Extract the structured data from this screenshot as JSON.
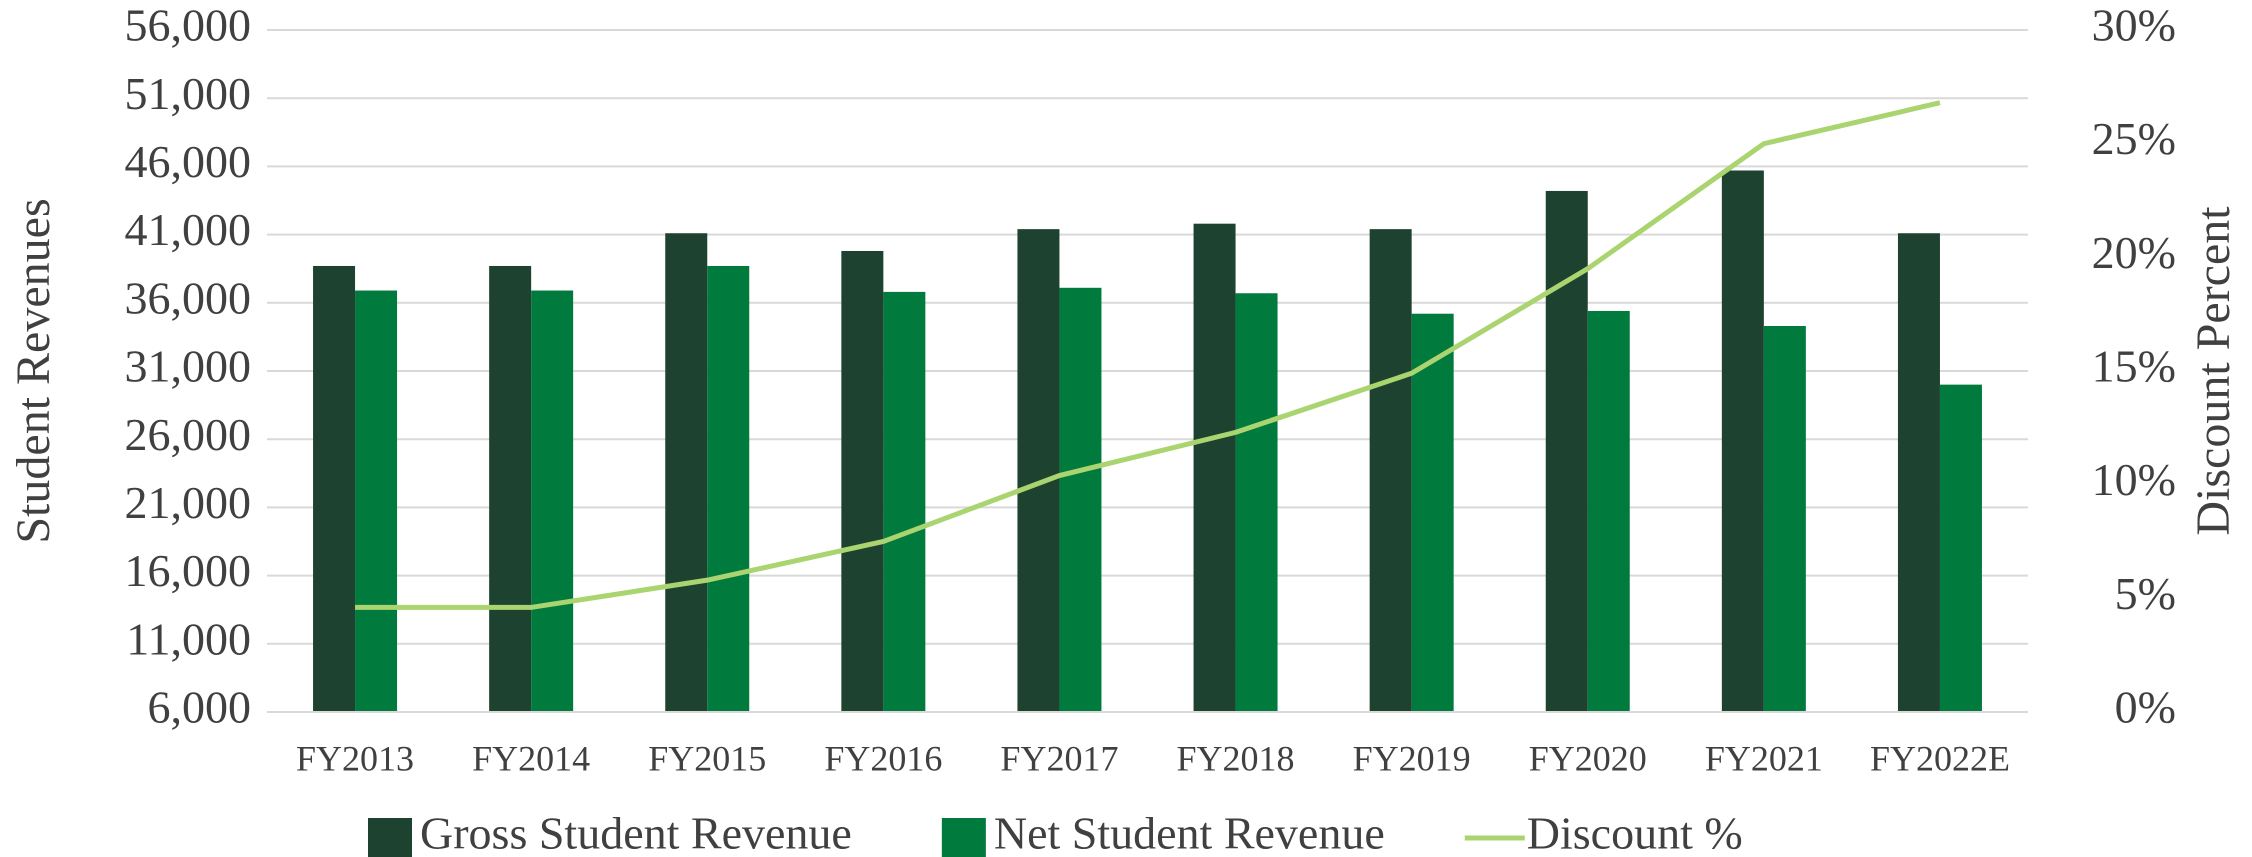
{
  "chart_data": {
    "type": "bar",
    "categories": [
      "FY2013",
      "FY2014",
      "FY2015",
      "FY2016",
      "FY2017",
      "FY2018",
      "FY2019",
      "FY2020",
      "FY2021",
      "FY2022E"
    ],
    "series": [
      {
        "name": "Gross Student Revenue",
        "color": "#1e4230",
        "values": [
          38700,
          38700,
          41100,
          39800,
          41400,
          41800,
          41400,
          44200,
          45700,
          41100
        ]
      },
      {
        "name": "Net Student Revenue",
        "color": "#007a3d",
        "values": [
          36900,
          36900,
          38700,
          36800,
          37100,
          36700,
          35200,
          35400,
          34300,
          30000
        ]
      },
      {
        "name": "Discount %",
        "type": "line",
        "axis": "y2",
        "color": "#a9d46f",
        "values": [
          4.6,
          4.6,
          5.8,
          7.5,
          10.4,
          12.3,
          14.9,
          19.5,
          25.0,
          26.8
        ]
      }
    ],
    "y_label": "Student Revenues",
    "y2_label": "Discount Percent",
    "ylim": [
      6000,
      56000
    ],
    "yticks": [
      {
        "value": 6000,
        "label": "6,000"
      },
      {
        "value": 11000,
        "label": "11,000"
      },
      {
        "value": 16000,
        "label": "16,000"
      },
      {
        "value": 21000,
        "label": "21,000"
      },
      {
        "value": 26000,
        "label": "26,000"
      },
      {
        "value": 31000,
        "label": "31,000"
      },
      {
        "value": 36000,
        "label": "36,000"
      },
      {
        "value": 41000,
        "label": "41,000"
      },
      {
        "value": 46000,
        "label": "46,000"
      },
      {
        "value": 51000,
        "label": "51,000"
      },
      {
        "value": 56000,
        "label": "56,000"
      }
    ],
    "y2lim": [
      0,
      30
    ],
    "y2ticks": [
      {
        "value": 0,
        "label": "0%"
      },
      {
        "value": 5,
        "label": "5%"
      },
      {
        "value": 10,
        "label": "10%"
      },
      {
        "value": 15,
        "label": "15%"
      },
      {
        "value": 20,
        "label": "20%"
      },
      {
        "value": 25,
        "label": "25%"
      },
      {
        "value": 30,
        "label": "30%"
      }
    ],
    "grid": true,
    "legend": "bottom"
  }
}
